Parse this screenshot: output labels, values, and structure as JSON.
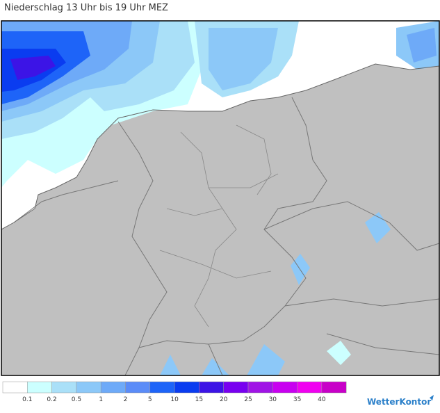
{
  "header": {
    "title": "Niederschlag 13 Uhr bis 19 Uhr MEZ"
  },
  "legend": {
    "colors": [
      "#ffffff",
      "#ccffff",
      "#aae0f8",
      "#8cc8f8",
      "#6eaaf8",
      "#5b8cf8",
      "#1e64f8",
      "#0a3cf0",
      "#3c14e6",
      "#7800f0",
      "#a014e6",
      "#c800f0",
      "#f000f0",
      "#c800c8"
    ],
    "labels": [
      "0.1",
      "0.2",
      "0.5",
      "1",
      "2",
      "5",
      "10",
      "15",
      "20",
      "25",
      "30",
      "35",
      "40"
    ]
  },
  "logo": "WetterKontor"
}
